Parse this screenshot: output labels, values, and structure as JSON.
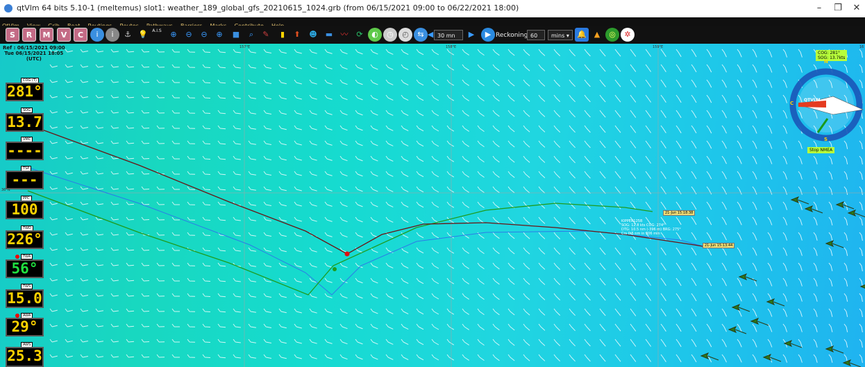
{
  "window": {
    "title": "qtVlm 64 bits 5.10-1 (meltemus) slot1: weather_189_global_gfs_20210615_1024.grb (from 06/15/2021 09:00 to 06/22/2021 18:00)",
    "minimize": "–",
    "maximize": "❐",
    "close": "✕"
  },
  "menu": [
    "QtVlm",
    "View",
    "Grib",
    "Boat",
    "Routings",
    "Routes",
    "Pathways",
    "Barriers",
    "Marks",
    "Contribute",
    "Help"
  ],
  "toolbar": {
    "buttons": [
      "S",
      "R",
      "M",
      "V",
      "C"
    ],
    "ais": "A.I.S",
    "time_step": "30 mn",
    "reckoning_label": "Reckoning",
    "reckoning_value": "60",
    "reckoning_unit": "mins",
    "accent": "#3a9bff"
  },
  "map": {
    "ref_line1": "Ref : 06/15/2021 09:00",
    "ref_line2": "Tue 06/15/2021 18:05",
    "ref_line3": "(UTC)",
    "lon_labels": [
      "157°E",
      "158°E",
      "159°E",
      "16"
    ],
    "lat_label": "36°N",
    "cog_badge_line1": "COG: 281°",
    "cog_badge_line2": "SOG: 13.7kts",
    "compass_n": "N",
    "compass_s": "S",
    "compass_c": "C",
    "compass_logo": "QTVLM",
    "stop_nmea": "Stop NMEA",
    "boat_info": [
      "KIPPER125B",
      "SOG: 12.8 kts COG: 274°",
      "DTG: 10.5 nm (-396 m) BRG: 275°",
      "Crs 0.5 nm in 306 min"
    ],
    "label_a": "21-Jun 15:18:38",
    "label_b": "21-Jun 15:13:44"
  },
  "instruments": [
    {
      "label": "COG (T)",
      "value": "281°",
      "color": "#ffd200",
      "alarm": false
    },
    {
      "label": "SOG",
      "value": "13.7",
      "color": "#ffd200",
      "alarm": false
    },
    {
      "label": "VMC",
      "value": "----",
      "color": "#ffd200",
      "alarm": false
    },
    {
      "label": "TSP",
      "value": "---",
      "color": "#ffd200",
      "alarm": false
    },
    {
      "label": "PPC",
      "value": "100",
      "color": "#ffd200",
      "alarm": false
    },
    {
      "label": "TWD",
      "value": "226°",
      "color": "#ffd200",
      "alarm": false
    },
    {
      "label": "TWA",
      "value": "56°",
      "color": "#20e040",
      "alarm": true
    },
    {
      "label": "TWS",
      "value": "15.0",
      "color": "#ffd200",
      "alarm": false
    },
    {
      "label": "AWA",
      "value": "29°",
      "color": "#ffd200",
      "alarm": true
    },
    {
      "label": "AWS",
      "value": "25.3",
      "color": "#ffd200",
      "alarm": false
    }
  ]
}
